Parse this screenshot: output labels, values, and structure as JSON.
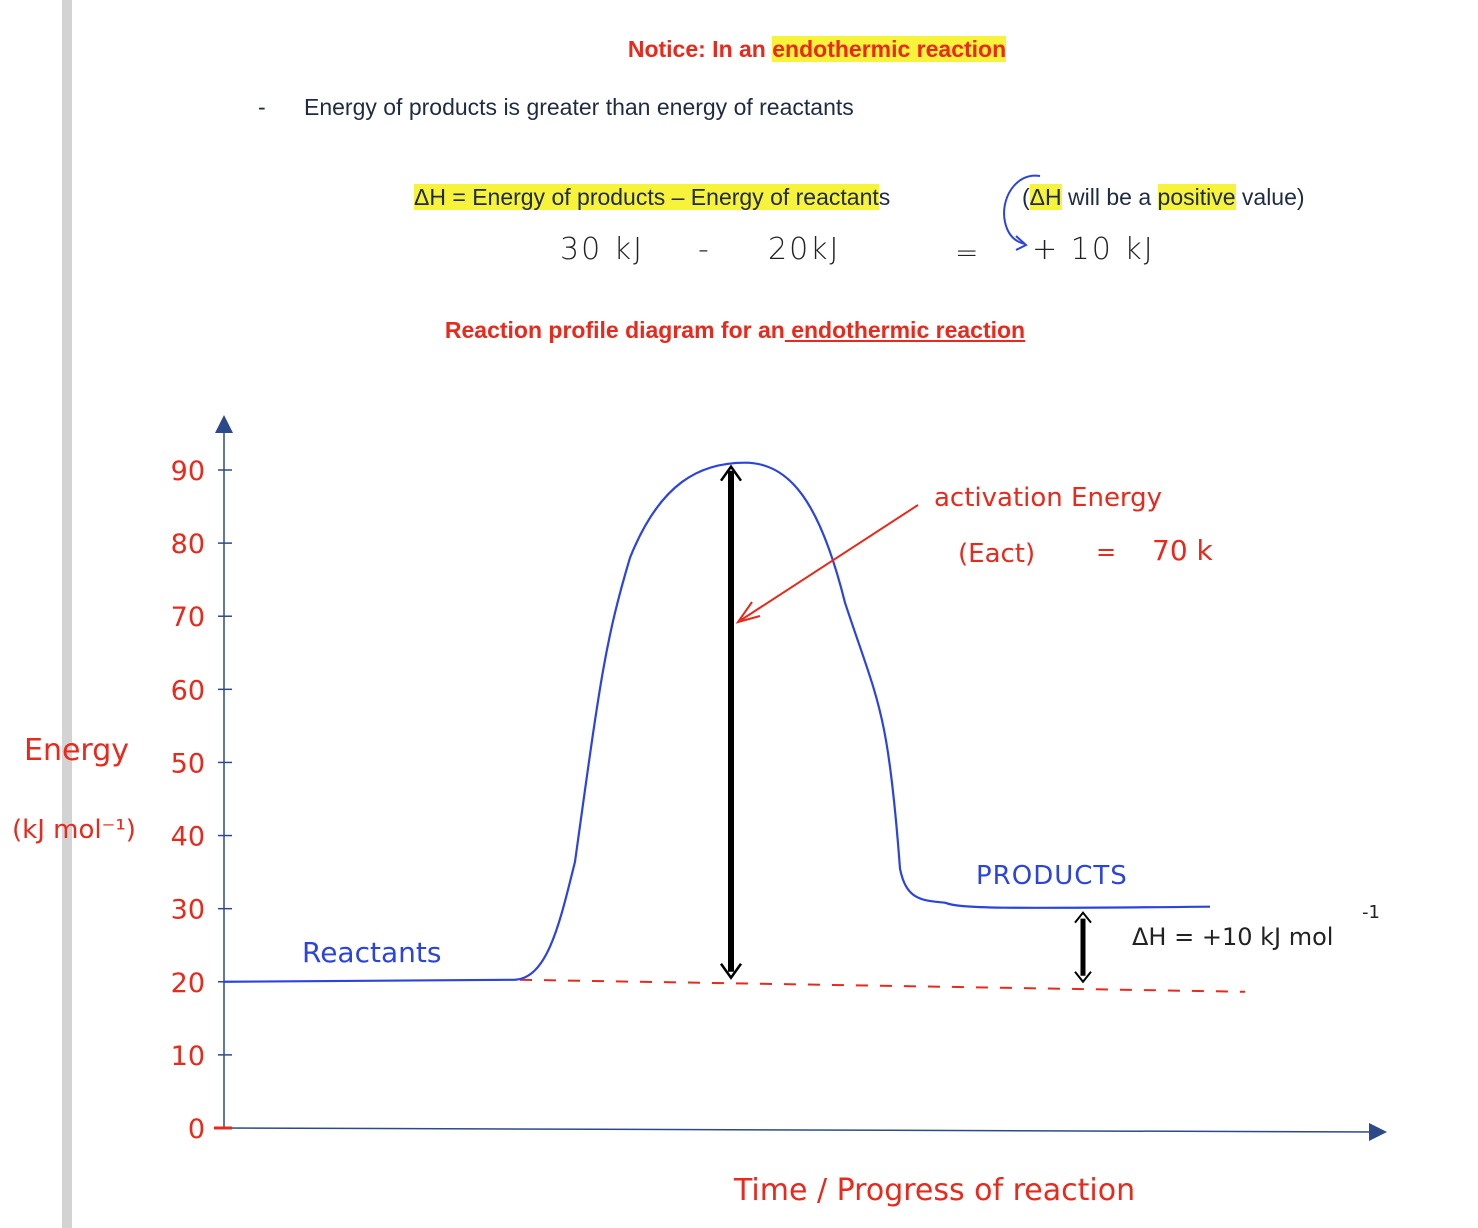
{
  "notice": {
    "prefix": "Notice: In an ",
    "highlight": "endothermic reaction"
  },
  "bullet": {
    "marker": "-",
    "text": "Energy of products is greater than energy of reactants"
  },
  "formula": {
    "lhs": "ΔH = ",
    "rhs_main": "Energy of products – Energy of reactant",
    "rhs_tail": "s"
  },
  "note": {
    "open": "(",
    "dh": "ΔH",
    "mid": " will be a ",
    "positive": "positive",
    "close": " value)"
  },
  "calculation": {
    "products": "30 kJ",
    "minus": "-",
    "reactants": "20kJ",
    "equals": "=",
    "result": "+ 10 kJ"
  },
  "subtitle": {
    "prefix": "Reaction profile diagram for an",
    "underlined": " endothermic reaction"
  },
  "chart_data": {
    "type": "line",
    "xlabel": "Time / Progress of reaction",
    "ylabel_line1": "Energy",
    "ylabel_line2": "(kJ mol⁻¹)",
    "ylim": [
      0,
      90
    ],
    "yticks": [
      0,
      10,
      20,
      30,
      40,
      50,
      60,
      70,
      80,
      90
    ],
    "ytick_labels": [
      "0",
      "10",
      "20",
      "30",
      "40",
      "50",
      "60",
      "70",
      "80",
      "90"
    ],
    "reactants_level": 20,
    "products_level": 30,
    "peak_level": 91,
    "reactants_label": "Reactants",
    "products_label": "PRODUCTS",
    "activation_label_line1": "activation Energy",
    "activation_label_line2": "(Eact)",
    "activation_equals": "=",
    "activation_value": "70 k",
    "delta_h_label": "ΔH = +10 kJ mol",
    "delta_h_sup": "-1",
    "colors": {
      "curve": "#2b44e0",
      "axis": "#2c4a8a",
      "annotation": "#e8291c",
      "arrow": "#000000"
    }
  }
}
